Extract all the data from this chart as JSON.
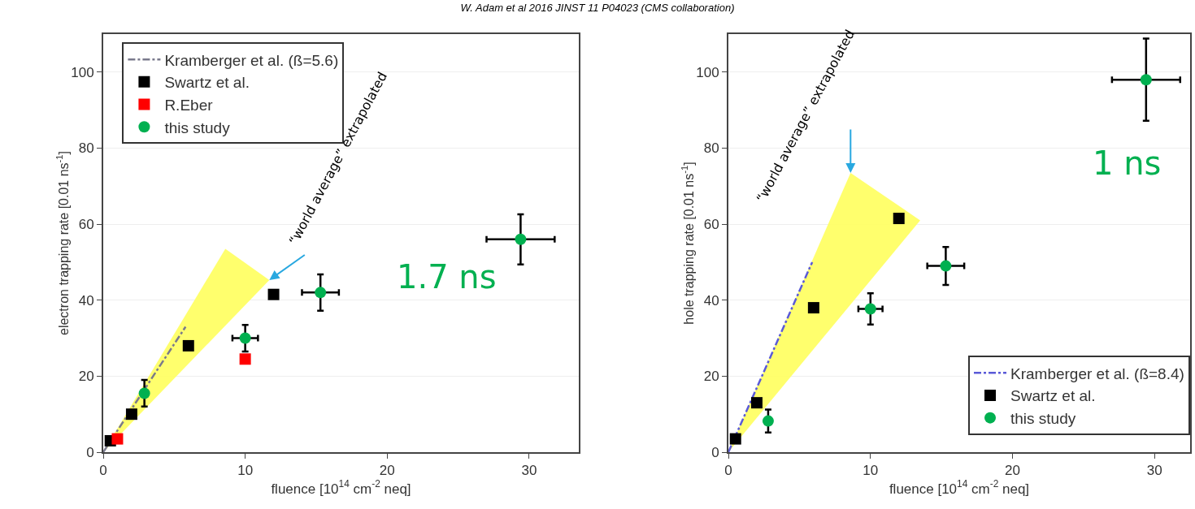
{
  "chart_data": [
    {
      "type": "scatter",
      "title": "W. Adam et al 2016 JINST 11 P04023 (CMS collaboration)",
      "xlabel": "fluence [10$^{14}$ cm$^{-2}$ neq]",
      "ylabel": "electron trapping rate [0.01 ns$^{-1}$]",
      "xlim": [
        0,
        33.5
      ],
      "xticks": [
        0,
        10,
        20,
        30
      ],
      "ylim": [
        0,
        110
      ],
      "yticks": [
        0,
        20,
        40,
        60,
        80,
        100
      ],
      "grid": "y",
      "legend": "top left",
      "annotations": [
        {
          "text": "“world average” extrapolated",
          "x": 11.7,
          "y": 45.3
        },
        "1.7 ns"
      ],
      "series": [
        {
          "type": "area",
          "color": "#ffff66",
          "x": [
            0,
            8.6,
            11.7,
            0
          ],
          "values": [
            0,
            53.5,
            45.3,
            0
          ]
        },
        {
          "type": "line",
          "name": "Kramberger et al. (ß=5.6)",
          "color": "#7a7a8c",
          "line_style": "dashed",
          "marker": "none",
          "x": [
            0,
            5.8
          ],
          "values": [
            0,
            33
          ]
        },
        {
          "name": "Swartz et al.",
          "color": "#000000",
          "marker": "square",
          "x": [
            0.5,
            2,
            6,
            12
          ],
          "values": [
            3,
            10,
            28,
            41.5
          ]
        },
        {
          "name": "R.Eber",
          "color": "#ff0000",
          "marker": "square",
          "x": [
            1,
            10
          ],
          "values": [
            3.5,
            24.5
          ]
        },
        {
          "name": "this study",
          "color": "#00b050",
          "marker": "circle",
          "x": [
            2.9,
            10,
            15.3,
            29.4
          ],
          "values": [
            15.5,
            30,
            42,
            56
          ],
          "errors": [
            3.5,
            3.5,
            4.8,
            6.6
          ],
          "xerrors": [
            null,
            0.9,
            1.3,
            2.4
          ]
        }
      ]
    },
    {
      "type": "scatter",
      "xlabel": "fluence [10$^{14}$ cm$^{-2}$ neq]",
      "ylabel": "hole trapping rate [0.01 ns$^{-1}$]",
      "xlim": [
        0,
        32.5
      ],
      "xticks": [
        0,
        10,
        20,
        30
      ],
      "ylim": [
        0,
        110
      ],
      "yticks": [
        0,
        20,
        40,
        60,
        80,
        100
      ],
      "grid": "y",
      "legend": "bottom right",
      "annotations": [
        {
          "text": "“world average” extrapolated",
          "x": 8.6,
          "y": 73.5
        },
        "1 ns"
      ],
      "series": [
        {
          "type": "area",
          "color": "#ffff66",
          "x": [
            0,
            8.6,
            13.5,
            0
          ],
          "values": [
            0,
            73.5,
            61,
            0
          ]
        },
        {
          "type": "line",
          "name": "Kramberger et al. (ß=8.4)",
          "color": "#5a5ad8",
          "line_style": "dashed",
          "marker": "none",
          "x": [
            0,
            5.9
          ],
          "values": [
            0,
            50
          ]
        },
        {
          "name": "Swartz et al.",
          "color": "#000000",
          "marker": "square",
          "x": [
            0.5,
            2,
            6,
            12
          ],
          "values": [
            3.5,
            13,
            38,
            61.5
          ]
        },
        {
          "name": "this study",
          "color": "#00b050",
          "marker": "circle",
          "x": [
            2.8,
            10,
            15.3,
            29.4
          ],
          "values": [
            8.2,
            37.7,
            49,
            98
          ],
          "errors": [
            3,
            4.1,
            5,
            10.8
          ],
          "xerrors": [
            null,
            0.85,
            1.3,
            2.4
          ]
        }
      ]
    }
  ]
}
